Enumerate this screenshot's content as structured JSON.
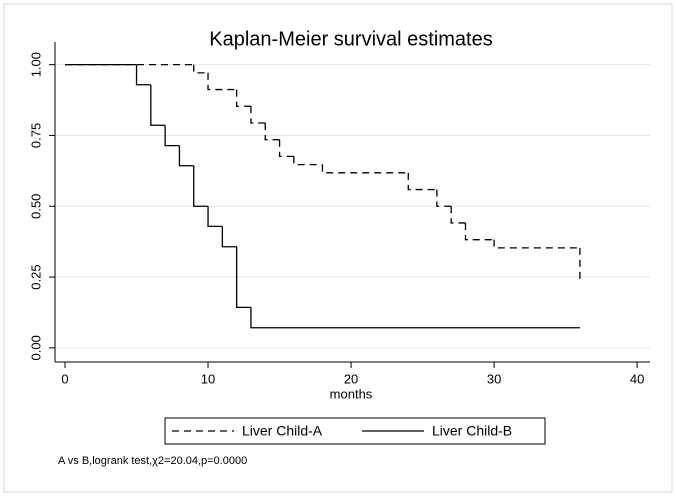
{
  "chart_data": {
    "type": "step",
    "title": "Kaplan-Meier survival estimates",
    "x_label": "months",
    "note": "A vs B,logrank test,χ2=20.04,p=0.0000",
    "xlim": [
      -0.7,
      40.9
    ],
    "ylim": [
      -0.05,
      1.08
    ],
    "xticks": [
      0,
      10,
      20,
      30,
      40
    ],
    "yticks": [
      {
        "value": 0,
        "label": "0.00"
      },
      {
        "value": 0.25,
        "label": "0.25"
      },
      {
        "value": 0.5,
        "label": "0.50"
      },
      {
        "value": 0.75,
        "label": "0.75"
      },
      {
        "value": 1,
        "label": "1.00"
      }
    ],
    "grid": true,
    "legend": "bottom",
    "series": [
      {
        "name": "Liver Child-A",
        "color": "#000000",
        "linestyle": "dashed",
        "x": [
          0,
          9,
          10,
          12,
          13,
          14,
          15,
          16,
          18,
          24,
          26,
          27,
          28,
          30,
          36
        ],
        "values": [
          1,
          0.971,
          0.912,
          0.853,
          0.794,
          0.735,
          0.676,
          0.647,
          0.618,
          0.559,
          0.5,
          0.441,
          0.382,
          0.353,
          0.235
        ]
      },
      {
        "name": "Liver Child-B",
        "color": "#000000",
        "linestyle": "solid",
        "x": [
          0,
          5,
          6,
          7,
          8,
          9,
          10,
          11,
          12,
          13,
          36
        ],
        "values": [
          1,
          0.929,
          0.786,
          0.714,
          0.643,
          0.5,
          0.429,
          0.357,
          0.143,
          0.071,
          0.071
        ]
      }
    ]
  }
}
